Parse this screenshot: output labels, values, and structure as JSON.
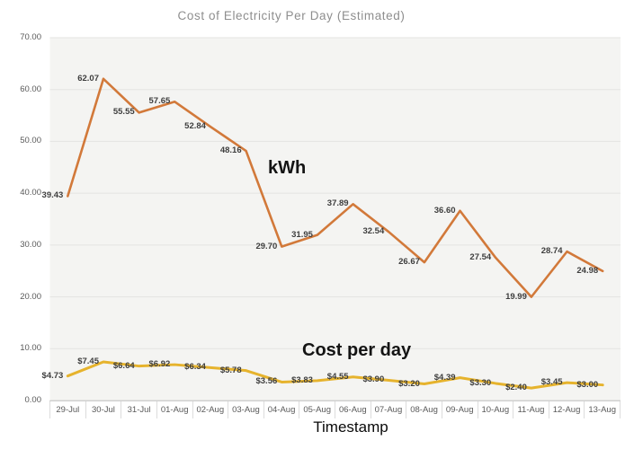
{
  "chart_data": {
    "type": "line",
    "title": "Cost of Electricity Per Day (Estimated)",
    "xlabel": "Timestamp",
    "ylabel": "",
    "ylim": [
      0,
      70
    ],
    "ytick_step": 10,
    "ytick_labels": [
      "0.00",
      "10.00",
      "20.00",
      "30.00",
      "40.00",
      "50.00",
      "60.00",
      "70.00"
    ],
    "grid": true,
    "legend_position": "none",
    "plot_background": "#f4f4f2",
    "gridline_color": "#e3e3e1",
    "categories": [
      "29-Jul",
      "30-Jul",
      "31-Jul",
      "01-Aug",
      "02-Aug",
      "03-Aug",
      "04-Aug",
      "05-Aug",
      "06-Aug",
      "07-Aug",
      "08-Aug",
      "09-Aug",
      "10-Aug",
      "11-Aug",
      "12-Aug",
      "13-Aug"
    ],
    "series": [
      {
        "name": "kWh",
        "color": "#d2793a",
        "line_width": 2.6,
        "values": [
          39.43,
          62.07,
          55.55,
          57.65,
          52.84,
          48.16,
          29.7,
          31.95,
          37.89,
          32.54,
          26.67,
          36.6,
          27.54,
          19.99,
          28.74,
          24.98
        ],
        "labels": [
          "39.43",
          "62.07",
          "55.55",
          "57.65",
          "52.84",
          "48.16",
          "29.70",
          "31.95",
          "37.89",
          "32.54",
          "26.67",
          "36.60",
          "27.54",
          "19.99",
          "28.74",
          "24.98"
        ]
      },
      {
        "name": "Cost per day",
        "color": "#e6b32d",
        "line_width": 3,
        "values": [
          4.73,
          7.45,
          6.64,
          6.92,
          6.34,
          5.78,
          3.56,
          3.83,
          4.55,
          3.9,
          3.2,
          4.39,
          3.3,
          2.4,
          3.45,
          3.0
        ],
        "labels": [
          "$4.73",
          "$7.45",
          "$6.64",
          "$6.92",
          "$6.34",
          "$5.78",
          "$3.56",
          "$3.83",
          "$4.55",
          "$3.90",
          "$3.20",
          "$4.39",
          "$3.30",
          "$2.40",
          "$3.45",
          "$3.00"
        ]
      }
    ],
    "annotations": [
      {
        "text": "kWh"
      },
      {
        "text": "Cost per day"
      }
    ]
  }
}
